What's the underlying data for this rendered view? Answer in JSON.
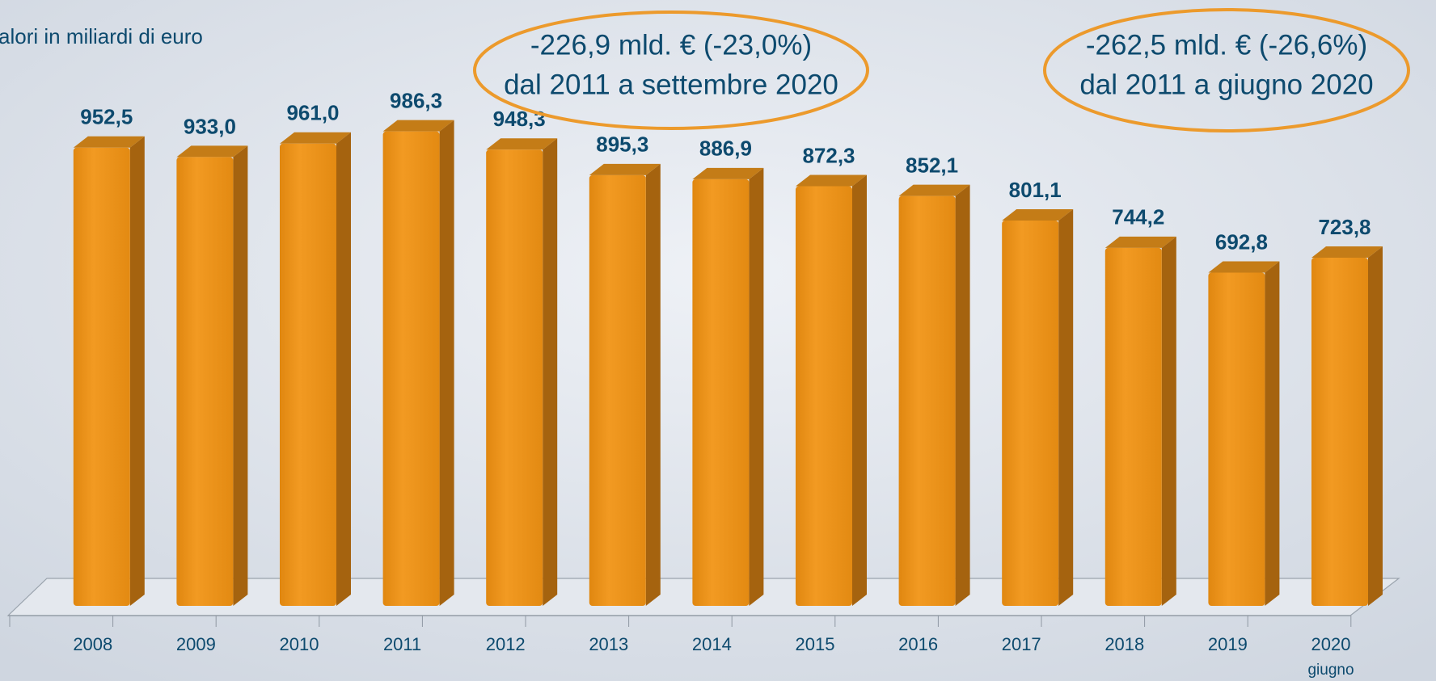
{
  "chart_data": {
    "type": "bar3d",
    "subtitle": "alori in miliardi di euro",
    "categories": [
      "2008",
      "2009",
      "2010",
      "2011",
      "2012",
      "2013",
      "2014",
      "2015",
      "2016",
      "2017",
      "2018",
      "2019",
      "2020"
    ],
    "category_sublabels": [
      null,
      null,
      null,
      null,
      null,
      null,
      null,
      null,
      null,
      null,
      null,
      null,
      "giugno"
    ],
    "values": [
      952.5,
      933.0,
      961.0,
      986.3,
      948.3,
      895.3,
      886.9,
      872.3,
      852.1,
      801.1,
      744.2,
      692.8,
      723.8
    ],
    "value_labels": [
      "952,5",
      "933,0",
      "961,0",
      "986,3",
      "948,3",
      "895,3",
      "886,9",
      "872,3",
      "852,1",
      "801,1",
      "744,2",
      "692,8",
      "723,8"
    ],
    "color": "#ee951e",
    "ylim": [
      0,
      1000
    ],
    "annotations": [
      {
        "lines": [
          "-226,9 mld. € (-23,0%)",
          "dal 2011 a settembre 2020"
        ]
      },
      {
        "lines": [
          "-262,5 mld. € (-26,6%)",
          "dal 2011 a giugno 2020"
        ]
      }
    ]
  }
}
